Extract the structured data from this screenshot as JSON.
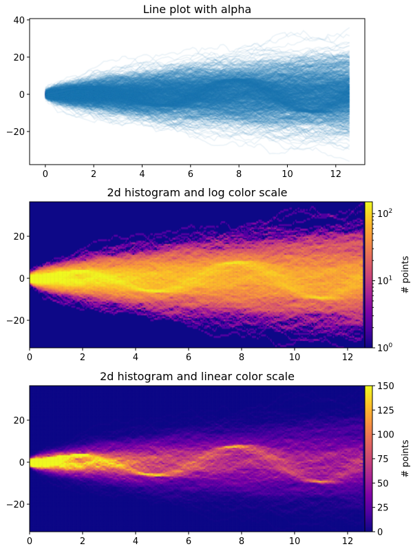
{
  "chart_data": [
    {
      "type": "line",
      "title": "Line plot with alpha",
      "xlim": [
        -0.65,
        13.2
      ],
      "ylim": [
        -37.8,
        40.7
      ],
      "xticks": [
        0,
        2,
        4,
        6,
        8,
        10,
        12
      ],
      "xtick_labels": [
        "0",
        "2",
        "4",
        "6",
        "8",
        "10",
        "12"
      ],
      "yticks": [
        -20,
        0,
        20,
        40
      ],
      "ytick_labels": [
        "−20",
        "0",
        "20",
        "40"
      ],
      "x_range": [
        0,
        12.566
      ],
      "num_series": 1000,
      "color": "#1f77b4",
      "alpha": 0.1
    },
    {
      "type": "heatmap",
      "title": "2d histogram and log color scale",
      "xlim": [
        0,
        12.65
      ],
      "ylim": [
        -33.1,
        36.4
      ],
      "xticks": [
        0,
        2,
        4,
        6,
        8,
        10,
        12
      ],
      "xtick_labels": [
        "0",
        "2",
        "4",
        "6",
        "8",
        "10",
        "12"
      ],
      "yticks": [
        -20,
        0,
        20
      ],
      "ytick_labels": [
        "−20",
        "0",
        "20"
      ],
      "cmap": "plasma",
      "colorbar": {
        "label": "# points",
        "scale": "log",
        "range": [
          1,
          150
        ],
        "ticks": [
          1,
          10,
          100
        ],
        "tick_labels": [
          "10",
          "10",
          "10"
        ],
        "tick_exponents": [
          "0",
          "1",
          "2"
        ]
      }
    },
    {
      "type": "heatmap",
      "title": "2d histogram and linear color scale",
      "xlim": [
        0,
        12.65
      ],
      "ylim": [
        -33.1,
        36.4
      ],
      "xticks": [
        0,
        2,
        4,
        6,
        8,
        10,
        12
      ],
      "xtick_labels": [
        "0",
        "2",
        "4",
        "6",
        "8",
        "10",
        "12"
      ],
      "yticks": [
        -20,
        0,
        20
      ],
      "ytick_labels": [
        "−20",
        "0",
        "20"
      ],
      "cmap": "plasma",
      "colorbar": {
        "label": "# points",
        "scale": "linear",
        "range": [
          0,
          150
        ],
        "ticks": [
          0,
          25,
          50,
          75,
          100,
          125,
          150
        ],
        "tick_labels": [
          "0",
          "25",
          "50",
          "75",
          "100",
          "125",
          "150"
        ]
      }
    }
  ]
}
